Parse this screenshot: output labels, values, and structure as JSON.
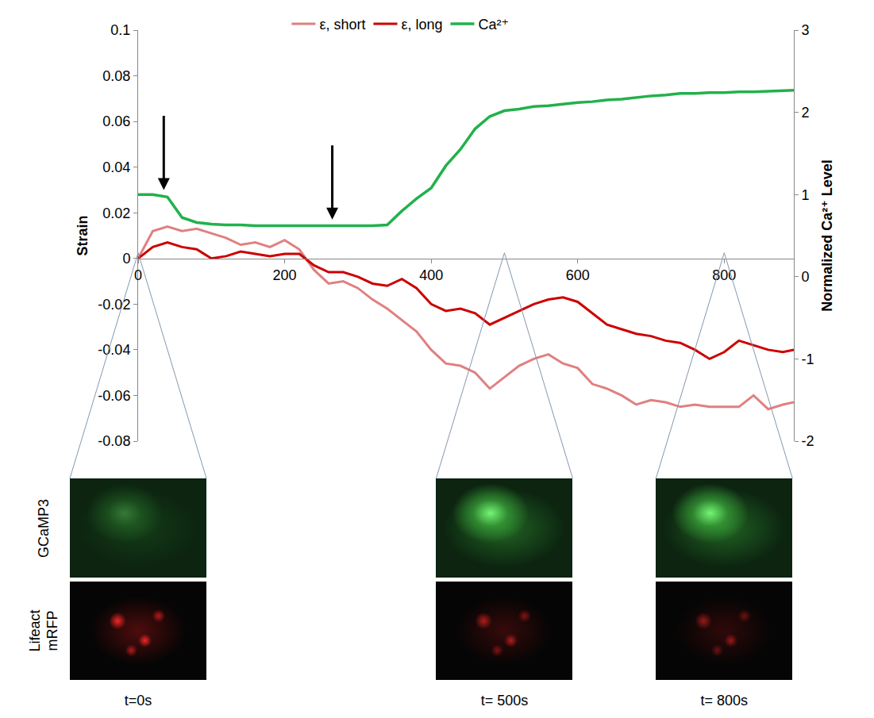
{
  "chart_data": {
    "type": "line",
    "x": [
      0,
      20,
      40,
      60,
      80,
      100,
      120,
      140,
      160,
      180,
      200,
      220,
      240,
      260,
      280,
      300,
      320,
      340,
      360,
      380,
      400,
      420,
      440,
      460,
      480,
      500,
      520,
      540,
      560,
      580,
      600,
      620,
      640,
      660,
      680,
      700,
      720,
      740,
      760,
      780,
      800,
      820,
      840,
      860,
      880,
      895
    ],
    "xlim": [
      0,
      895
    ],
    "xticks": [
      0,
      200,
      400,
      600,
      800
    ],
    "ylim": [
      -0.08,
      0.1
    ],
    "yticks": [
      -0.08,
      -0.06,
      -0.04,
      -0.02,
      0,
      0.02,
      0.04,
      0.06,
      0.08,
      0.1
    ],
    "y2lim": [
      -2,
      3
    ],
    "y2ticks": [
      -2,
      -1,
      0,
      1,
      2,
      3
    ],
    "y_label": "Strain",
    "y2_label": "Normalized Ca²⁺ Level",
    "grid": false,
    "legend": "top",
    "series": [
      {
        "name": "ε, short",
        "color": "#e08080",
        "values": [
          0,
          0.012,
          0.014,
          0.012,
          0.013,
          0.011,
          0.009,
          0.006,
          0.007,
          0.005,
          0.008,
          0.004,
          -0.005,
          -0.011,
          -0.01,
          -0.013,
          -0.018,
          -0.022,
          -0.027,
          -0.032,
          -0.04,
          -0.046,
          -0.047,
          -0.05,
          -0.057,
          -0.052,
          -0.047,
          -0.044,
          -0.042,
          -0.046,
          -0.048,
          -0.055,
          -0.057,
          -0.06,
          -0.064,
          -0.062,
          -0.063,
          -0.065,
          -0.064,
          -0.065,
          -0.065,
          -0.065,
          -0.06,
          -0.066,
          -0.064,
          -0.063
        ]
      },
      {
        "name": "ε, long",
        "color": "#cc0000",
        "values": [
          0,
          0.005,
          0.007,
          0.005,
          0.004,
          0,
          0.001,
          0.003,
          0.002,
          0.001,
          0.002,
          0.002,
          -0.003,
          -0.006,
          -0.006,
          -0.008,
          -0.011,
          -0.012,
          -0.009,
          -0.013,
          -0.02,
          -0.023,
          -0.022,
          -0.024,
          -0.029,
          -0.026,
          -0.023,
          -0.02,
          -0.018,
          -0.017,
          -0.019,
          -0.024,
          -0.029,
          -0.031,
          -0.033,
          -0.034,
          -0.036,
          -0.037,
          -0.04,
          -0.044,
          -0.041,
          -0.036,
          -0.038,
          -0.04,
          -0.041,
          -0.04
        ]
      },
      {
        "name": "Ca²⁺",
        "color": "#22b14c",
        "axis": "y2",
        "values": [
          1,
          1,
          0.97,
          0.72,
          0.66,
          0.64,
          0.63,
          0.63,
          0.62,
          0.62,
          0.62,
          0.62,
          0.62,
          0.62,
          0.62,
          0.62,
          0.62,
          0.63,
          0.8,
          0.95,
          1.08,
          1.35,
          1.55,
          1.8,
          1.95,
          2.02,
          2.04,
          2.07,
          2.08,
          2.1,
          2.12,
          2.13,
          2.15,
          2.16,
          2.18,
          2.2,
          2.21,
          2.23,
          2.23,
          2.24,
          2.24,
          2.25,
          2.25,
          2.26,
          2.27,
          2.27
        ]
      }
    ],
    "arrows": [
      {
        "x": 35,
        "y": 0.03
      },
      {
        "x": 265,
        "y": 0.017
      }
    ]
  },
  "panels": {
    "rows": [
      "GCaMP3",
      "Lifeact mRFP"
    ],
    "times": [
      {
        "value": 0,
        "label": "t=0s"
      },
      {
        "value": 500,
        "label": "t= 500s"
      },
      {
        "value": 800,
        "label": "t= 800s"
      }
    ]
  }
}
